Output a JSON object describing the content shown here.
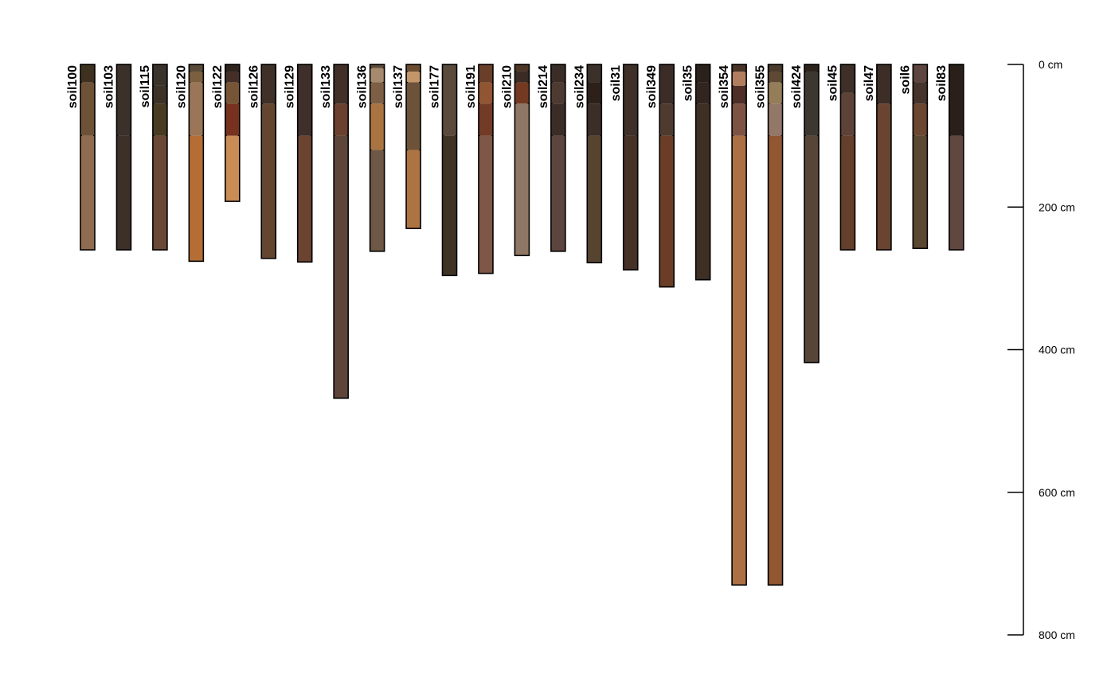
{
  "chart_data": {
    "type": "soil-profile-sketch",
    "depth_unit": "cm",
    "depth_range": [
      0,
      800
    ],
    "depth_ticks": [
      {
        "value": 0,
        "label": "0 cm"
      },
      {
        "value": 200,
        "label": "200 cm"
      },
      {
        "value": 400,
        "label": "400 cm"
      },
      {
        "value": 600,
        "label": "600 cm"
      },
      {
        "value": 800,
        "label": "800 cm"
      }
    ],
    "profiles": [
      {
        "id": "soil100",
        "horizons": [
          {
            "top": 0,
            "bottom": 25,
            "color": "#3f311f"
          },
          {
            "top": 25,
            "bottom": 100,
            "color": "#6e5237"
          },
          {
            "top": 100,
            "bottom": 260,
            "color": "#8f6b50"
          }
        ]
      },
      {
        "id": "soil103",
        "horizons": [
          {
            "top": 0,
            "bottom": 100,
            "color": "#3b302a"
          },
          {
            "top": 100,
            "bottom": 260,
            "color": "#3d3029"
          }
        ]
      },
      {
        "id": "soil115",
        "horizons": [
          {
            "top": 0,
            "bottom": 30,
            "color": "#3a332c"
          },
          {
            "top": 30,
            "bottom": 55,
            "color": "#3d3227"
          },
          {
            "top": 55,
            "bottom": 100,
            "color": "#493a23"
          },
          {
            "top": 100,
            "bottom": 260,
            "color": "#694936"
          }
        ]
      },
      {
        "id": "soil120",
        "horizons": [
          {
            "top": 0,
            "bottom": 10,
            "color": "#5a4a38"
          },
          {
            "top": 10,
            "bottom": 25,
            "color": "#7c5f3f"
          },
          {
            "top": 25,
            "bottom": 100,
            "color": "#9a7557"
          },
          {
            "top": 100,
            "bottom": 276,
            "color": "#b46e35"
          }
        ]
      },
      {
        "id": "soil122",
        "horizons": [
          {
            "top": 0,
            "bottom": 10,
            "color": "#2f231c"
          },
          {
            "top": 10,
            "bottom": 25,
            "color": "#432f27"
          },
          {
            "top": 25,
            "bottom": 55,
            "color": "#765536"
          },
          {
            "top": 55,
            "bottom": 100,
            "color": "#76311f"
          },
          {
            "top": 100,
            "bottom": 192,
            "color": "#c98c55"
          }
        ]
      },
      {
        "id": "soil126",
        "horizons": [
          {
            "top": 0,
            "bottom": 55,
            "color": "#3f3028"
          },
          {
            "top": 55,
            "bottom": 272,
            "color": "#634530"
          }
        ]
      },
      {
        "id": "soil129",
        "horizons": [
          {
            "top": 0,
            "bottom": 100,
            "color": "#3e2f2a"
          },
          {
            "top": 100,
            "bottom": 277,
            "color": "#6b4331"
          }
        ]
      },
      {
        "id": "soil133",
        "horizons": [
          {
            "top": 0,
            "bottom": 55,
            "color": "#423028"
          },
          {
            "top": 55,
            "bottom": 100,
            "color": "#6b402e"
          },
          {
            "top": 100,
            "bottom": 468,
            "color": "#5e453a"
          }
        ]
      },
      {
        "id": "soil136",
        "horizons": [
          {
            "top": 0,
            "bottom": 5,
            "color": "#5f4a38"
          },
          {
            "top": 5,
            "bottom": 25,
            "color": "#a58a6d"
          },
          {
            "top": 25,
            "bottom": 55,
            "color": "#7c5f44"
          },
          {
            "top": 55,
            "bottom": 120,
            "color": "#aa7442"
          },
          {
            "top": 120,
            "bottom": 262,
            "color": "#6d5845"
          }
        ]
      },
      {
        "id": "soil137",
        "horizons": [
          {
            "top": 0,
            "bottom": 10,
            "color": "#6b4d2f"
          },
          {
            "top": 10,
            "bottom": 25,
            "color": "#c3966a"
          },
          {
            "top": 25,
            "bottom": 120,
            "color": "#6c5238"
          },
          {
            "top": 120,
            "bottom": 230,
            "color": "#ad7443"
          }
        ]
      },
      {
        "id": "soil177",
        "horizons": [
          {
            "top": 0,
            "bottom": 100,
            "color": "#5a4a3c"
          },
          {
            "top": 100,
            "bottom": 296,
            "color": "#3f3326"
          }
        ]
      },
      {
        "id": "soil191",
        "horizons": [
          {
            "top": 0,
            "bottom": 25,
            "color": "#6a3f2a"
          },
          {
            "top": 25,
            "bottom": 55,
            "color": "#915533"
          },
          {
            "top": 55,
            "bottom": 100,
            "color": "#723b26"
          },
          {
            "top": 100,
            "bottom": 293,
            "color": "#7e5746"
          }
        ]
      },
      {
        "id": "soil210",
        "horizons": [
          {
            "top": 0,
            "bottom": 10,
            "color": "#4d3626"
          },
          {
            "top": 10,
            "bottom": 25,
            "color": "#3a2b24"
          },
          {
            "top": 25,
            "bottom": 55,
            "color": "#733a21"
          },
          {
            "top": 55,
            "bottom": 268,
            "color": "#8e7764"
          }
        ]
      },
      {
        "id": "soil214",
        "horizons": [
          {
            "top": 0,
            "bottom": 25,
            "color": "#3a2d27"
          },
          {
            "top": 25,
            "bottom": 55,
            "color": "#4d3a31"
          },
          {
            "top": 55,
            "bottom": 100,
            "color": "#3a2d27"
          },
          {
            "top": 100,
            "bottom": 262,
            "color": "#5c453e"
          }
        ]
      },
      {
        "id": "soil234",
        "horizons": [
          {
            "top": 0,
            "bottom": 25,
            "color": "#3b302a"
          },
          {
            "top": 25,
            "bottom": 55,
            "color": "#2d201b"
          },
          {
            "top": 55,
            "bottom": 100,
            "color": "#3b2e27"
          },
          {
            "top": 100,
            "bottom": 278,
            "color": "#574430"
          }
        ]
      },
      {
        "id": "soil31",
        "horizons": [
          {
            "top": 0,
            "bottom": 100,
            "color": "#3e2f29"
          },
          {
            "top": 100,
            "bottom": 288,
            "color": "#463127"
          }
        ]
      },
      {
        "id": "soil349",
        "horizons": [
          {
            "top": 0,
            "bottom": 55,
            "color": "#3c2c27"
          },
          {
            "top": 55,
            "bottom": 100,
            "color": "#4f3a2f"
          },
          {
            "top": 100,
            "bottom": 312,
            "color": "#6b3d27"
          }
        ]
      },
      {
        "id": "soil35",
        "horizons": [
          {
            "top": 0,
            "bottom": 25,
            "color": "#2a211d"
          },
          {
            "top": 25,
            "bottom": 55,
            "color": "#322520"
          },
          {
            "top": 55,
            "bottom": 302,
            "color": "#3d2f24"
          }
        ]
      },
      {
        "id": "soil354",
        "horizons": [
          {
            "top": 0,
            "bottom": 10,
            "color": "#4a3327"
          },
          {
            "top": 10,
            "bottom": 30,
            "color": "#b17d5f"
          },
          {
            "top": 30,
            "bottom": 55,
            "color": "#4e2e27"
          },
          {
            "top": 55,
            "bottom": 100,
            "color": "#7d5444"
          },
          {
            "top": 100,
            "bottom": 730,
            "color": "#ad7045"
          }
        ]
      },
      {
        "id": "soil355",
        "horizons": [
          {
            "top": 0,
            "bottom": 10,
            "color": "#4a3a2b"
          },
          {
            "top": 10,
            "bottom": 25,
            "color": "#5e4934"
          },
          {
            "top": 25,
            "bottom": 55,
            "color": "#957d5a"
          },
          {
            "top": 55,
            "bottom": 100,
            "color": "#937769"
          },
          {
            "top": 100,
            "bottom": 730,
            "color": "#915632"
          }
        ]
      },
      {
        "id": "soil424",
        "horizons": [
          {
            "top": 0,
            "bottom": 10,
            "color": "#2c231d"
          },
          {
            "top": 10,
            "bottom": 100,
            "color": "#3c3731"
          },
          {
            "top": 100,
            "bottom": 418,
            "color": "#574638"
          }
        ]
      },
      {
        "id": "soil45",
        "horizons": [
          {
            "top": 0,
            "bottom": 40,
            "color": "#3e2f28"
          },
          {
            "top": 40,
            "bottom": 100,
            "color": "#5e4238"
          },
          {
            "top": 100,
            "bottom": 260,
            "color": "#643f2c"
          }
        ]
      },
      {
        "id": "soil47",
        "horizons": [
          {
            "top": 0,
            "bottom": 55,
            "color": "#3c2d26"
          },
          {
            "top": 55,
            "bottom": 260,
            "color": "#6a4331"
          }
        ]
      },
      {
        "id": "soil6",
        "horizons": [
          {
            "top": 0,
            "bottom": 25,
            "color": "#5e4540"
          },
          {
            "top": 25,
            "bottom": 55,
            "color": "#45332c"
          },
          {
            "top": 55,
            "bottom": 100,
            "color": "#6b4631"
          },
          {
            "top": 100,
            "bottom": 258,
            "color": "#5b4832"
          }
        ]
      },
      {
        "id": "soil83",
        "horizons": [
          {
            "top": 0,
            "bottom": 100,
            "color": "#2a1f19"
          },
          {
            "top": 100,
            "bottom": 260,
            "color": "#604840"
          }
        ]
      }
    ]
  }
}
